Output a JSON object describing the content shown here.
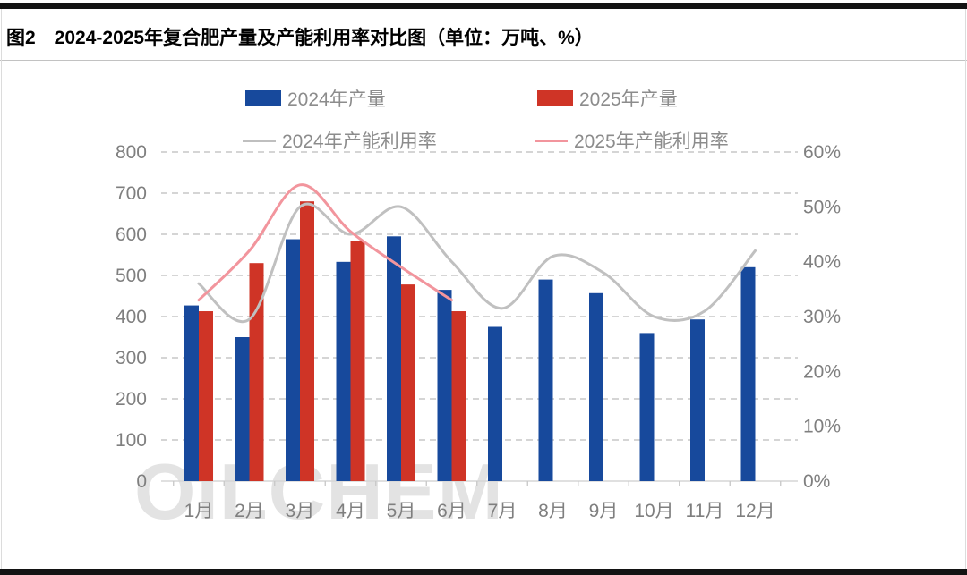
{
  "title": "图2　2024-2025年复合肥产量及产能利用率对比图（单位：万吨、%）",
  "watermark": "OILCHEM",
  "legend": [
    {
      "label": "2024年产量",
      "type": "rect",
      "color": "#17499c"
    },
    {
      "label": "2025年产量",
      "type": "rect",
      "color": "#cf3426"
    },
    {
      "label": "2024年产能利用率",
      "type": "line",
      "color": "#bfbfbf"
    },
    {
      "label": "2025年产能利用率",
      "type": "line",
      "color": "#f2959d"
    }
  ],
  "chart_data": {
    "type": "bar+line combo",
    "categories": [
      "1月",
      "2月",
      "3月",
      "4月",
      "5月",
      "6月",
      "7月",
      "8月",
      "9月",
      "10月",
      "11月",
      "12月"
    ],
    "series": [
      {
        "name": "2024年产量",
        "type": "bar",
        "axis": "left",
        "color": "#17499c",
        "values": [
          427,
          350,
          588,
          533,
          595,
          465,
          375,
          490,
          457,
          360,
          393,
          520
        ]
      },
      {
        "name": "2025年产量",
        "type": "bar",
        "axis": "left",
        "color": "#cf3426",
        "values": [
          413,
          530,
          680,
          583,
          478,
          413
        ]
      },
      {
        "name": "2024年产能利用率",
        "type": "line",
        "axis": "right",
        "color": "#c0c0c0",
        "values": [
          36,
          29.5,
          50,
          45,
          50,
          40,
          31.5,
          41,
          38,
          30,
          31,
          42
        ]
      },
      {
        "name": "2025年产能利用率",
        "type": "line",
        "axis": "right",
        "color": "#f2959d",
        "values": [
          33,
          42,
          54,
          45.5,
          39,
          33
        ]
      }
    ],
    "left_axis": {
      "min": 0,
      "max": 800,
      "step": 100,
      "tick_labels": [
        "0",
        "100",
        "200",
        "300",
        "400",
        "500",
        "600",
        "700",
        "800"
      ]
    },
    "right_axis": {
      "min": 0,
      "max": 60,
      "step": 10,
      "tick_labels": [
        "0%",
        "10%",
        "20%",
        "30%",
        "40%",
        "50%",
        "60%"
      ]
    },
    "grid": "horizontal dashed",
    "legend_position": "top"
  }
}
